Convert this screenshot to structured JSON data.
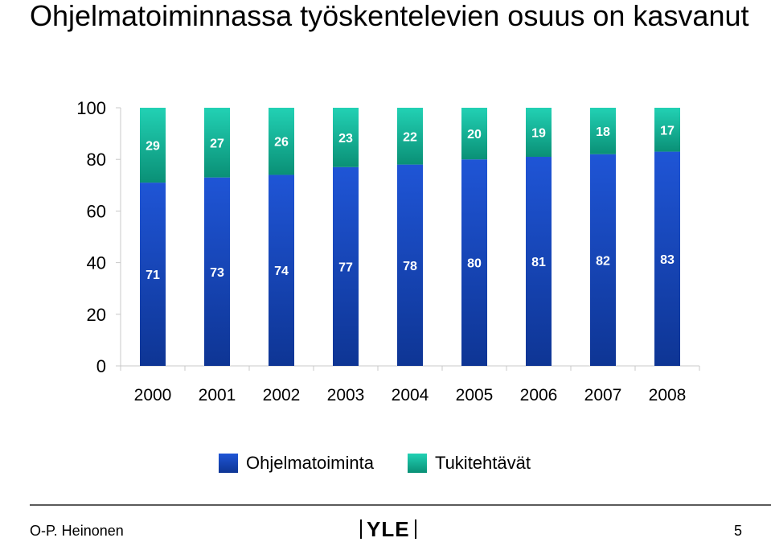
{
  "title": "Ohjelmatoiminnassa työskentelevien osuus on kasvanut",
  "footer": {
    "author": "O-P. Heinonen",
    "page": "5",
    "logo": "YLE"
  },
  "colors": {
    "series1_light": "#1f55d6",
    "series1_dark": "#0e3594",
    "series2_light": "#22d1b4",
    "series2_dark": "#0a9076",
    "axis": "#c8c8c8"
  },
  "chart_data": {
    "type": "bar",
    "stacked": true,
    "percent": true,
    "categories": [
      "2000",
      "2001",
      "2002",
      "2003",
      "2004",
      "2005",
      "2006",
      "2007",
      "2008"
    ],
    "series": [
      {
        "name": "Ohjelmatoiminta",
        "values": [
          71,
          73,
          74,
          77,
          78,
          80,
          81,
          82,
          83
        ]
      },
      {
        "name": "Tukitehtävät",
        "values": [
          29,
          27,
          26,
          23,
          22,
          20,
          19,
          18,
          17
        ]
      }
    ],
    "yticks": [
      "0",
      "20",
      "40",
      "60",
      "80",
      "100"
    ],
    "ylim": [
      0,
      100
    ],
    "grid": false,
    "legend": "bottom"
  }
}
